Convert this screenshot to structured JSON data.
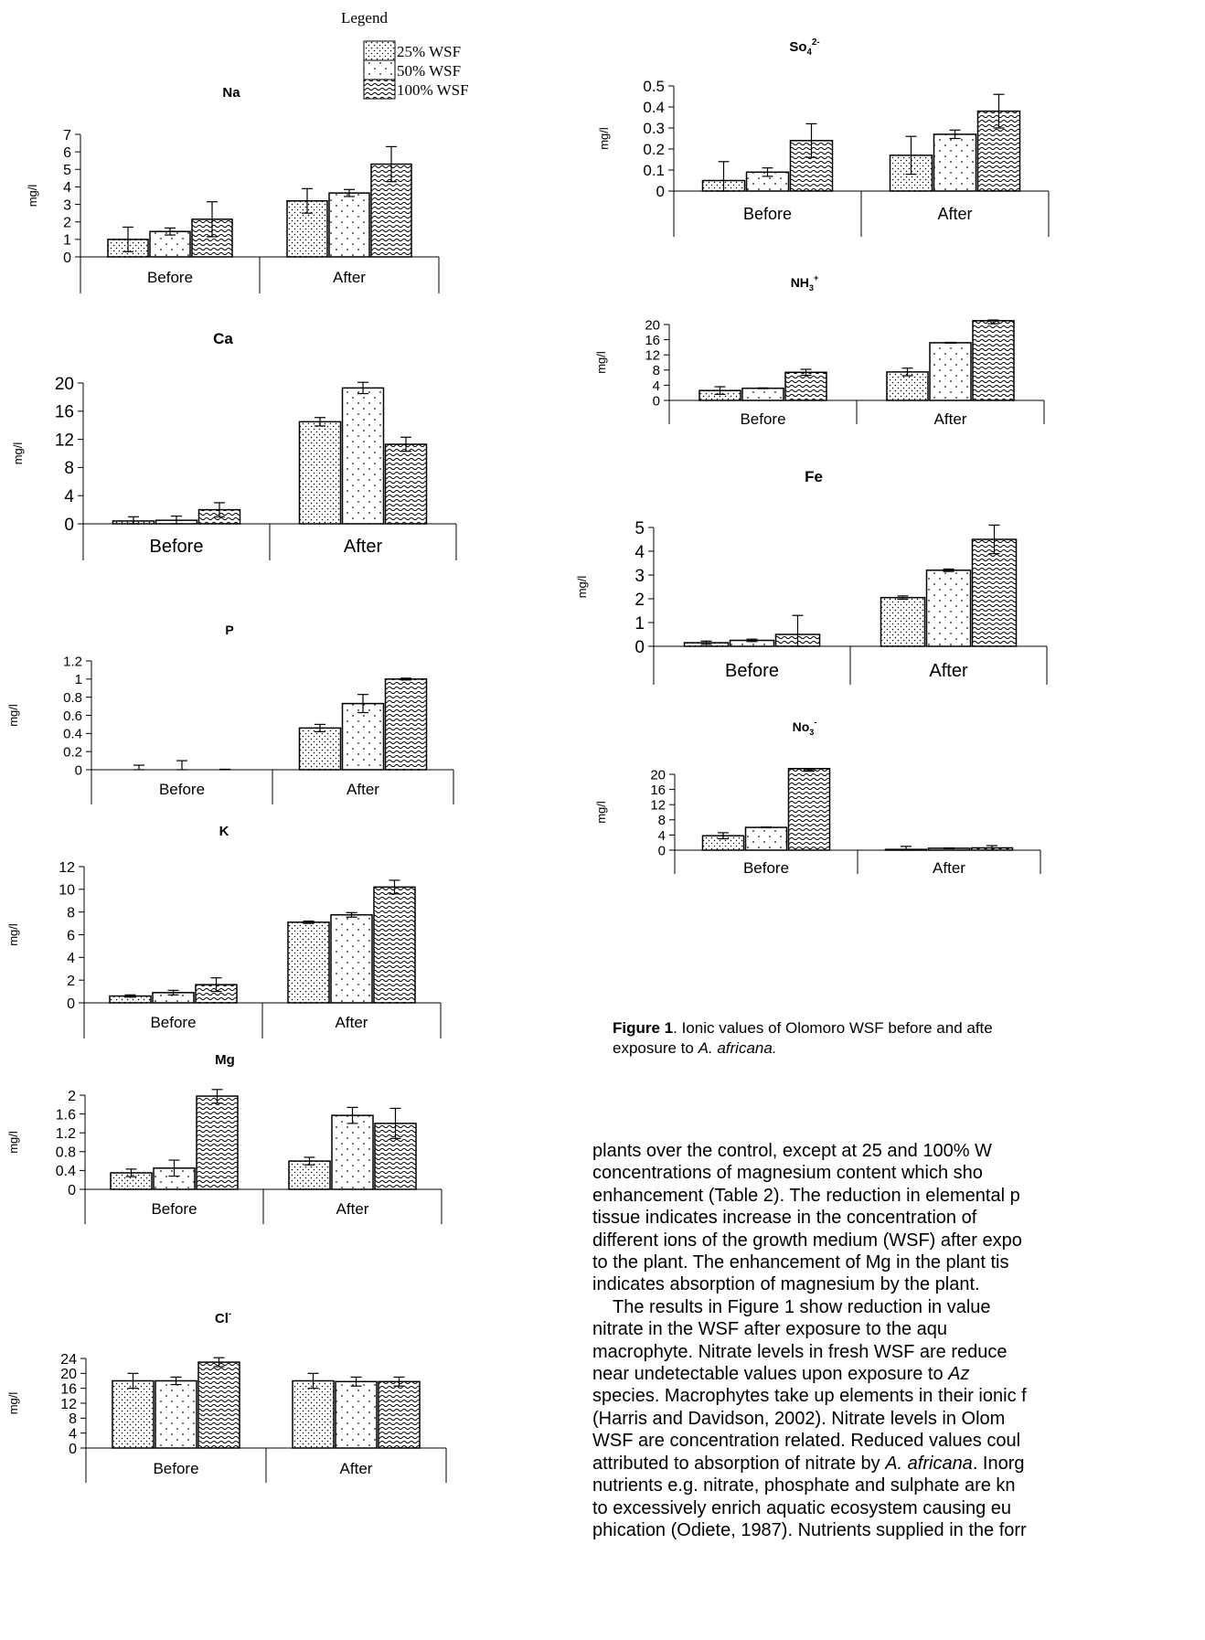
{
  "legend": {
    "title": "Legend",
    "items": [
      {
        "label": "25% WSF",
        "pattern": "dots-dense"
      },
      {
        "label": "50% WSF",
        "pattern": "dots-sparse"
      },
      {
        "label": "100% WSF",
        "pattern": "waves"
      }
    ]
  },
  "colors": {
    "axis": "#000000",
    "bar_fill": "#ffffff",
    "pattern_ink": "#000000"
  },
  "chart_data": [
    {
      "id": "Na",
      "type": "bar",
      "title": "Na",
      "title_sub": "",
      "title_sup": "",
      "ylabel": "mg/l",
      "categories": [
        "Before",
        "After"
      ],
      "ylim": [
        0,
        7
      ],
      "yticks": [
        0,
        1,
        2,
        3,
        4,
        5,
        6,
        7
      ],
      "series": [
        {
          "name": "25% WSF",
          "values": [
            1.0,
            3.2
          ],
          "errors": [
            0.7,
            0.7
          ]
        },
        {
          "name": "50% WSF",
          "values": [
            1.45,
            3.65
          ],
          "errors": [
            0.2,
            0.2
          ]
        },
        {
          "name": "100% WSF",
          "values": [
            2.15,
            5.3
          ],
          "errors": [
            1.0,
            1.0
          ]
        }
      ]
    },
    {
      "id": "Ca",
      "type": "bar",
      "title": "Ca",
      "title_sub": "",
      "title_sup": "",
      "ylabel": "mg/l",
      "categories": [
        "Before",
        "After"
      ],
      "ylim": [
        0,
        20
      ],
      "yticks": [
        0,
        4,
        8,
        12,
        16,
        20
      ],
      "series": [
        {
          "name": "25% WSF",
          "values": [
            0.4,
            14.5
          ],
          "errors": [
            0.6,
            0.6
          ]
        },
        {
          "name": "50% WSF",
          "values": [
            0.5,
            19.3
          ],
          "errors": [
            0.6,
            0.8
          ]
        },
        {
          "name": "100% WSF",
          "values": [
            2.0,
            11.3
          ],
          "errors": [
            1.0,
            1.0
          ]
        }
      ]
    },
    {
      "id": "P",
      "type": "bar",
      "title": "P",
      "title_sub": "",
      "title_sup": "",
      "ylabel": "mg/l",
      "categories": [
        "Before",
        "After"
      ],
      "ylim": [
        0,
        1.2
      ],
      "yticks": [
        "0",
        "0.2",
        "0.4",
        "0.6",
        "0.8",
        "1",
        "1.2"
      ],
      "series": [
        {
          "name": "25% WSF",
          "values": [
            0,
            0.46
          ],
          "errors": [
            0.05,
            0.04
          ]
        },
        {
          "name": "50% WSF",
          "values": [
            0,
            0.73
          ],
          "errors": [
            0.1,
            0.1
          ]
        },
        {
          "name": "100% WSF",
          "values": [
            0,
            1.0
          ],
          "errors": [
            0.005,
            0.01
          ]
        }
      ]
    },
    {
      "id": "K",
      "type": "bar",
      "title": "K",
      "title_sub": "",
      "title_sup": "",
      "ylabel": "mg/l",
      "categories": [
        "Before",
        "After"
      ],
      "ylim": [
        0,
        12
      ],
      "yticks": [
        0,
        2,
        4,
        6,
        8,
        10,
        12
      ],
      "series": [
        {
          "name": "25% WSF",
          "values": [
            0.6,
            7.1
          ],
          "errors": [
            0.1,
            0.1
          ]
        },
        {
          "name": "50% WSF",
          "values": [
            0.9,
            7.75
          ],
          "errors": [
            0.2,
            0.2
          ]
        },
        {
          "name": "100% WSF",
          "values": [
            1.6,
            10.2
          ],
          "errors": [
            0.6,
            0.6
          ]
        }
      ]
    },
    {
      "id": "Mg",
      "type": "bar",
      "title": "Mg",
      "title_sub": "",
      "title_sup": "",
      "ylabel": "mg/l",
      "categories": [
        "Before",
        "After"
      ],
      "ylim": [
        0,
        2
      ],
      "yticks": [
        "0",
        "0.4",
        "0.8",
        "1.2",
        "1.6",
        "2"
      ],
      "series": [
        {
          "name": "25% WSF",
          "values": [
            0.35,
            0.6
          ],
          "errors": [
            0.08,
            0.08
          ]
        },
        {
          "name": "50% WSF",
          "values": [
            0.45,
            1.57
          ],
          "errors": [
            0.17,
            0.17
          ]
        },
        {
          "name": "100% WSF",
          "values": [
            1.98,
            1.4
          ],
          "errors": [
            0.15,
            0.32
          ]
        }
      ]
    },
    {
      "id": "Cl",
      "type": "bar",
      "title": "Cl",
      "title_sub": "",
      "title_sup": "-",
      "ylabel": "mg/l",
      "categories": [
        "Before",
        "After"
      ],
      "ylim": [
        0,
        24
      ],
      "yticks": [
        0,
        4,
        8,
        12,
        16,
        20,
        24
      ],
      "series": [
        {
          "name": "25% WSF",
          "values": [
            18.0,
            18.0
          ],
          "errors": [
            2.0,
            2.0
          ]
        },
        {
          "name": "50% WSF",
          "values": [
            18.0,
            17.8
          ],
          "errors": [
            1.0,
            1.2
          ]
        },
        {
          "name": "100% WSF",
          "values": [
            23.0,
            17.8
          ],
          "errors": [
            1.2,
            1.2
          ]
        }
      ]
    },
    {
      "id": "SO4",
      "type": "bar",
      "title": "So",
      "title_sub": "4",
      "title_sup": "2-",
      "ylabel": "mg/l",
      "categories": [
        "Before",
        "After"
      ],
      "ylim": [
        0,
        0.5
      ],
      "yticks": [
        "0",
        "0.1",
        "0.2",
        "0.3",
        "0.4",
        "0.5"
      ],
      "series": [
        {
          "name": "25% WSF",
          "values": [
            0.05,
            0.17
          ],
          "errors": [
            0.09,
            0.09
          ]
        },
        {
          "name": "50% WSF",
          "values": [
            0.09,
            0.27
          ],
          "errors": [
            0.02,
            0.02
          ]
        },
        {
          "name": "100% WSF",
          "values": [
            0.24,
            0.38
          ],
          "errors": [
            0.08,
            0.08
          ]
        }
      ]
    },
    {
      "id": "NH3",
      "type": "bar",
      "title": "NH",
      "title_sub": "3",
      "title_sup": "+",
      "ylabel": "mg/l",
      "categories": [
        "Before",
        "After"
      ],
      "ylim": [
        0,
        20
      ],
      "yticks": [
        0,
        4,
        8,
        12,
        16,
        20
      ],
      "series": [
        {
          "name": "25% WSF",
          "values": [
            2.6,
            7.5
          ],
          "errors": [
            1.0,
            1.0
          ]
        },
        {
          "name": "50% WSF",
          "values": [
            3.2,
            15.2
          ],
          "errors": [
            0.1,
            0.1
          ]
        },
        {
          "name": "100% WSF",
          "values": [
            7.4,
            21.0
          ],
          "errors": [
            0.8,
            0.8
          ]
        }
      ]
    },
    {
      "id": "Fe",
      "type": "bar",
      "title": "Fe",
      "title_sub": "",
      "title_sup": "",
      "ylabel": "mg/l",
      "categories": [
        "Before",
        "After"
      ],
      "ylim": [
        0,
        5
      ],
      "yticks": [
        0,
        1,
        2,
        3,
        4,
        5
      ],
      "series": [
        {
          "name": "25% WSF",
          "values": [
            0.15,
            2.05
          ],
          "errors": [
            0.07,
            0.07
          ]
        },
        {
          "name": "50% WSF",
          "values": [
            0.25,
            3.2
          ],
          "errors": [
            0.05,
            0.05
          ]
        },
        {
          "name": "100% WSF",
          "values": [
            0.5,
            4.5
          ],
          "errors": [
            0.8,
            0.6
          ]
        }
      ]
    },
    {
      "id": "NO3",
      "type": "bar",
      "title": "No",
      "title_sub": "3",
      "title_sup": "-",
      "ylabel": "mg/l",
      "categories": [
        "Before",
        "After"
      ],
      "ylim": [
        0,
        20
      ],
      "yticks": [
        0,
        4,
        8,
        12,
        16,
        20
      ],
      "series": [
        {
          "name": "25% WSF",
          "values": [
            3.8,
            0.2
          ],
          "errors": [
            0.8,
            0.8
          ]
        },
        {
          "name": "50% WSF",
          "values": [
            6.0,
            0.5
          ],
          "errors": [
            0.1,
            0.1
          ]
        },
        {
          "name": "100% WSF",
          "values": [
            21.5,
            0.6
          ],
          "errors": [
            0.7,
            0.6
          ]
        }
      ]
    }
  ],
  "caption": {
    "label": "Figure 1",
    "text_a": ". Ionic values of Olomoro WSF before and afte",
    "text_b": "exposure to ",
    "species": "A. africana."
  },
  "body": [
    {
      "indent": false,
      "parts": [
        {
          "t": "plants over the control, except at 25 and 100% W"
        }
      ]
    },
    {
      "indent": false,
      "parts": [
        {
          "t": "concentrations of magnesium content which sho"
        }
      ]
    },
    {
      "indent": false,
      "parts": [
        {
          "t": "enhancement (Table 2). The reduction in elemental p"
        }
      ]
    },
    {
      "indent": false,
      "parts": [
        {
          "t": "tissue indicates increase in the concentration of"
        }
      ]
    },
    {
      "indent": false,
      "parts": [
        {
          "t": "different ions of the growth medium (WSF) after expo"
        }
      ]
    },
    {
      "indent": false,
      "parts": [
        {
          "t": "to the plant. The enhancement of Mg in the plant tis"
        }
      ]
    },
    {
      "indent": false,
      "parts": [
        {
          "t": "indicates absorption of magnesium by the plant."
        }
      ]
    },
    {
      "indent": true,
      "parts": [
        {
          "t": "The results in Figure 1 show reduction in value"
        }
      ]
    },
    {
      "indent": false,
      "parts": [
        {
          "t": "nitrate in the WSF after exposure to the aqu"
        }
      ]
    },
    {
      "indent": false,
      "parts": [
        {
          "t": "macrophyte. Nitrate levels in fresh WSF are reduce"
        }
      ]
    },
    {
      "indent": false,
      "parts": [
        {
          "t": "near undetectable values upon exposure to "
        },
        {
          "t": "Az",
          "i": true
        }
      ]
    },
    {
      "indent": false,
      "parts": [
        {
          "t": "species. Macrophytes take up elements in their ionic f"
        }
      ]
    },
    {
      "indent": false,
      "parts": [
        {
          "t": "(Harris and Davidson, 2002). Nitrate levels in Olom"
        }
      ]
    },
    {
      "indent": false,
      "parts": [
        {
          "t": "WSF are concentration related. Reduced values coul"
        }
      ]
    },
    {
      "indent": false,
      "parts": [
        {
          "t": "attributed to absorption of nitrate by "
        },
        {
          "t": "A. africana",
          "i": true
        },
        {
          "t": ". Inorg"
        }
      ]
    },
    {
      "indent": false,
      "parts": [
        {
          "t": "nutrients e.g. nitrate, phosphate and sulphate are kn"
        }
      ]
    },
    {
      "indent": false,
      "parts": [
        {
          "t": "to excessively enrich aquatic ecosystem causing eu"
        }
      ]
    },
    {
      "indent": false,
      "parts": [
        {
          "t": "phication (Odiete, 1987). Nutrients supplied in the forr"
        }
      ]
    }
  ]
}
